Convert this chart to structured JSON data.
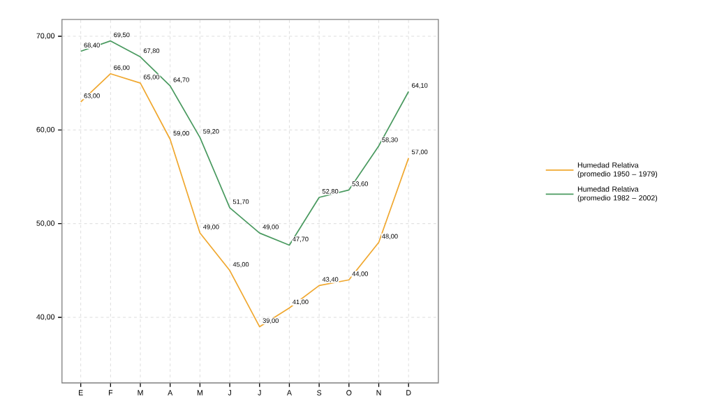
{
  "chart_data": {
    "type": "line",
    "categories": [
      "E",
      "F",
      "M",
      "A",
      "M",
      "J",
      "J",
      "A",
      "S",
      "O",
      "N",
      "D"
    ],
    "series": [
      {
        "name": "Humedad Relativa (promedio 1950 – 1979)",
        "color": "#f0a830",
        "values": [
          63.0,
          66.0,
          65.0,
          59.0,
          49.0,
          45.0,
          39.0,
          41.0,
          43.4,
          44.0,
          48.0,
          57.0
        ],
        "value_labels": [
          "63,00",
          "66,00",
          "65,00",
          "59,00",
          "49,00",
          "45,00",
          "39,00",
          "41,00",
          "43,40",
          "44,00",
          "48,00",
          "57,00"
        ]
      },
      {
        "name": "Humedad Relativa (promedio 1982 – 2002)",
        "color": "#4a9a60",
        "values": [
          68.4,
          69.5,
          67.8,
          64.7,
          59.2,
          51.7,
          49.0,
          47.7,
          52.8,
          53.6,
          58.3,
          64.1
        ],
        "value_labels": [
          "68,40",
          "69,50",
          "67,80",
          "64,70",
          "59,20",
          "51,70",
          "49,00",
          "47,70",
          "52,80",
          "53,60",
          "58,30",
          "64,10"
        ]
      }
    ],
    "ylim": [
      33,
      71.8
    ],
    "yticks": [
      {
        "value": 40,
        "label": "40,00"
      },
      {
        "value": 50,
        "label": "50,00"
      },
      {
        "value": 60,
        "label": "60,00"
      },
      {
        "value": 70,
        "label": "70,00"
      }
    ],
    "grid": true,
    "legend": "right",
    "marker": "none",
    "line_style": "solid"
  }
}
